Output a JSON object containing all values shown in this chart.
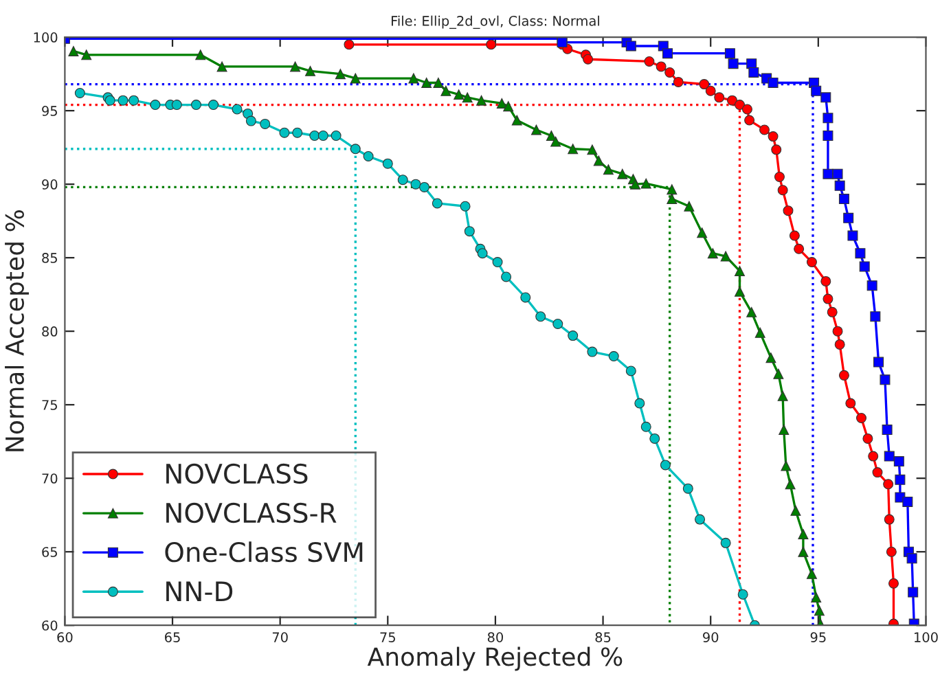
{
  "chart_data": {
    "type": "line",
    "title": "File: Ellip_2d_ovl, Class: Normal",
    "xlabel": "Anomaly Rejected %",
    "ylabel": "Normal Accepted %",
    "xlim": [
      60,
      100
    ],
    "ylim": [
      60,
      100
    ],
    "xticks": [
      60,
      65,
      70,
      75,
      80,
      85,
      90,
      95,
      100
    ],
    "yticks": [
      60,
      65,
      70,
      75,
      80,
      85,
      90,
      95,
      100
    ],
    "grid": false,
    "legend": "bottom left",
    "line_style": "solid",
    "series": [
      {
        "name": "NOVCLASS",
        "color": "#ff0000",
        "marker": "circle",
        "x": [
          73.2,
          79.8,
          83.1,
          83.35,
          84.2,
          84.3,
          87.15,
          87.7,
          88.1,
          88.5,
          89.7,
          90.0,
          90.4,
          91.0,
          91.35,
          91.7,
          91.8,
          92.5,
          92.9,
          93.05,
          93.2,
          93.35,
          93.6,
          93.9,
          94.1,
          94.7,
          95.35,
          95.45,
          95.65,
          95.9,
          96.0,
          96.2,
          96.5,
          97.0,
          97.3,
          97.55,
          97.75,
          98.25,
          98.3,
          98.4,
          98.5,
          98.5
        ],
        "values": [
          99.5,
          99.5,
          99.5,
          99.2,
          98.8,
          98.5,
          98.35,
          98.0,
          97.6,
          96.95,
          96.8,
          96.35,
          95.9,
          95.7,
          95.4,
          95.1,
          94.35,
          93.7,
          93.25,
          92.35,
          90.5,
          89.6,
          88.2,
          86.5,
          85.6,
          84.7,
          83.4,
          82.2,
          81.3,
          80.0,
          79.1,
          77.0,
          75.1,
          74.1,
          72.7,
          71.5,
          70.4,
          69.6,
          67.2,
          65.0,
          62.85,
          60.1
        ]
      },
      {
        "name": "NOVCLASS-R",
        "color": "#007f00",
        "marker": "triangle",
        "x": [
          60.4,
          61.0,
          66.3,
          67.3,
          70.7,
          71.4,
          72.8,
          73.5,
          76.2,
          76.8,
          77.35,
          77.7,
          78.3,
          78.7,
          79.35,
          80.3,
          80.6,
          81.0,
          81.9,
          82.6,
          82.8,
          83.6,
          84.5,
          84.8,
          85.25,
          85.9,
          86.4,
          86.5,
          87.0,
          88.2,
          88.2,
          89.0,
          89.6,
          90.1,
          90.7,
          91.35,
          91.35,
          91.9,
          92.3,
          92.8,
          93.15,
          93.35,
          93.4,
          93.5,
          93.7,
          93.95,
          94.3,
          94.3,
          94.7,
          94.9,
          95.05,
          95.1
        ],
        "values": [
          99.05,
          98.8,
          98.8,
          98.0,
          98.0,
          97.7,
          97.5,
          97.2,
          97.2,
          96.9,
          96.9,
          96.35,
          96.1,
          95.9,
          95.7,
          95.5,
          95.3,
          94.35,
          93.7,
          93.3,
          92.9,
          92.4,
          92.35,
          91.6,
          91.0,
          90.7,
          90.35,
          90.0,
          90.05,
          89.65,
          89.0,
          88.5,
          86.7,
          85.3,
          85.1,
          84.1,
          82.7,
          81.3,
          79.9,
          78.2,
          77.1,
          75.6,
          73.3,
          70.85,
          69.6,
          67.8,
          66.2,
          65.0,
          63.5,
          61.9,
          61.0,
          60.1
        ]
      },
      {
        "name": "One-Class SVM",
        "color": "#0000ff",
        "marker": "square",
        "x": [
          60.0,
          83.1,
          83.1,
          86.1,
          86.3,
          87.8,
          88.0,
          90.9,
          91.05,
          91.9,
          92.0,
          92.6,
          92.9,
          94.8,
          94.9,
          95.35,
          95.45,
          95.45,
          95.45,
          95.9,
          96.0,
          96.2,
          96.4,
          96.6,
          96.95,
          97.15,
          97.5,
          97.65,
          97.8,
          98.1,
          98.2,
          98.3,
          98.75,
          98.8,
          98.8,
          99.15,
          99.2,
          99.35,
          99.4,
          99.45
        ],
        "values": [
          99.9,
          99.9,
          99.65,
          99.65,
          99.4,
          99.4,
          98.9,
          98.9,
          98.2,
          98.2,
          97.6,
          97.2,
          96.9,
          96.9,
          96.35,
          95.9,
          94.5,
          93.3,
          90.7,
          90.7,
          89.9,
          89.0,
          87.7,
          86.5,
          85.3,
          84.4,
          83.1,
          81.0,
          77.9,
          76.7,
          73.3,
          71.5,
          71.15,
          69.9,
          68.7,
          68.4,
          65.0,
          64.55,
          62.25,
          60.1
        ]
      },
      {
        "name": "NN-D",
        "color": "#00bfbf",
        "marker": "circle",
        "x": [
          60.7,
          62.0,
          62.1,
          62.7,
          63.2,
          64.2,
          64.9,
          65.2,
          66.1,
          66.9,
          68.0,
          68.5,
          68.65,
          69.3,
          70.2,
          70.8,
          71.6,
          72.0,
          72.6,
          73.5,
          74.1,
          75.0,
          75.7,
          76.3,
          76.7,
          77.3,
          78.6,
          78.8,
          79.3,
          79.4,
          80.1,
          80.5,
          81.4,
          82.1,
          82.9,
          83.6,
          84.5,
          85.5,
          86.3,
          86.7,
          87.0,
          87.4,
          87.9,
          88.95,
          89.5,
          90.7,
          91.5,
          92.05
        ],
        "values": [
          96.2,
          95.9,
          95.7,
          95.7,
          95.7,
          95.4,
          95.4,
          95.4,
          95.4,
          95.4,
          95.1,
          94.8,
          94.3,
          94.1,
          93.5,
          93.5,
          93.3,
          93.3,
          93.3,
          92.4,
          91.9,
          91.4,
          90.3,
          90.0,
          89.8,
          88.7,
          88.5,
          86.8,
          85.6,
          85.3,
          84.7,
          83.7,
          82.3,
          81.0,
          80.5,
          79.7,
          78.6,
          78.3,
          77.3,
          75.1,
          73.5,
          72.7,
          70.9,
          69.3,
          67.2,
          65.6,
          62.1,
          60.0
        ]
      },
      {
        "color": "#ff0000",
        "marker": "none",
        "line_style": "dotted",
        "x": [
          60,
          91.35,
          91.35
        ],
        "values": [
          95.4,
          95.4,
          60
        ]
      },
      {
        "color": "#0000ff",
        "marker": "none",
        "line_style": "dotted",
        "x": [
          60,
          94.75,
          94.75
        ],
        "values": [
          96.8,
          96.8,
          60
        ]
      },
      {
        "color": "#007f00",
        "marker": "none",
        "line_style": "dotted",
        "x": [
          60,
          88.1,
          88.1
        ],
        "values": [
          89.8,
          89.8,
          60
        ]
      },
      {
        "color": "#00bfbf",
        "marker": "none",
        "line_style": "dotted",
        "x": [
          60,
          73.5,
          73.5
        ],
        "values": [
          92.4,
          92.4,
          60
        ]
      }
    ]
  }
}
